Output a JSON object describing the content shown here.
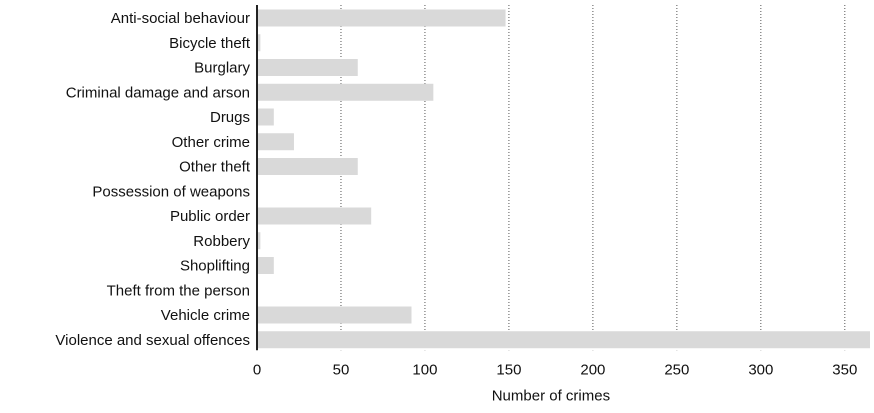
{
  "chart_data": {
    "type": "bar",
    "orientation": "horizontal",
    "categories": [
      "Anti-social behaviour",
      "Bicycle theft",
      "Burglary",
      "Criminal damage and arson",
      "Drugs",
      "Other crime",
      "Other theft",
      "Possession of weapons",
      "Public order",
      "Robbery",
      "Shoplifting",
      "Theft from the person",
      "Vehicle crime",
      "Violence and sexual offences"
    ],
    "values": [
      148,
      2,
      60,
      105,
      10,
      22,
      60,
      0,
      68,
      2,
      10,
      0,
      92,
      365
    ],
    "title": "",
    "xlabel": "Number of crimes",
    "ylabel": "",
    "xlim": [
      0,
      365
    ],
    "xticks": [
      0,
      50,
      100,
      150,
      200,
      250,
      300,
      350
    ],
    "grid": "vertical dotted",
    "legend": "none",
    "colors": {
      "bar": "#d9d9d9",
      "axis": "#222222",
      "grid": "#555555",
      "text": "#111111"
    }
  }
}
